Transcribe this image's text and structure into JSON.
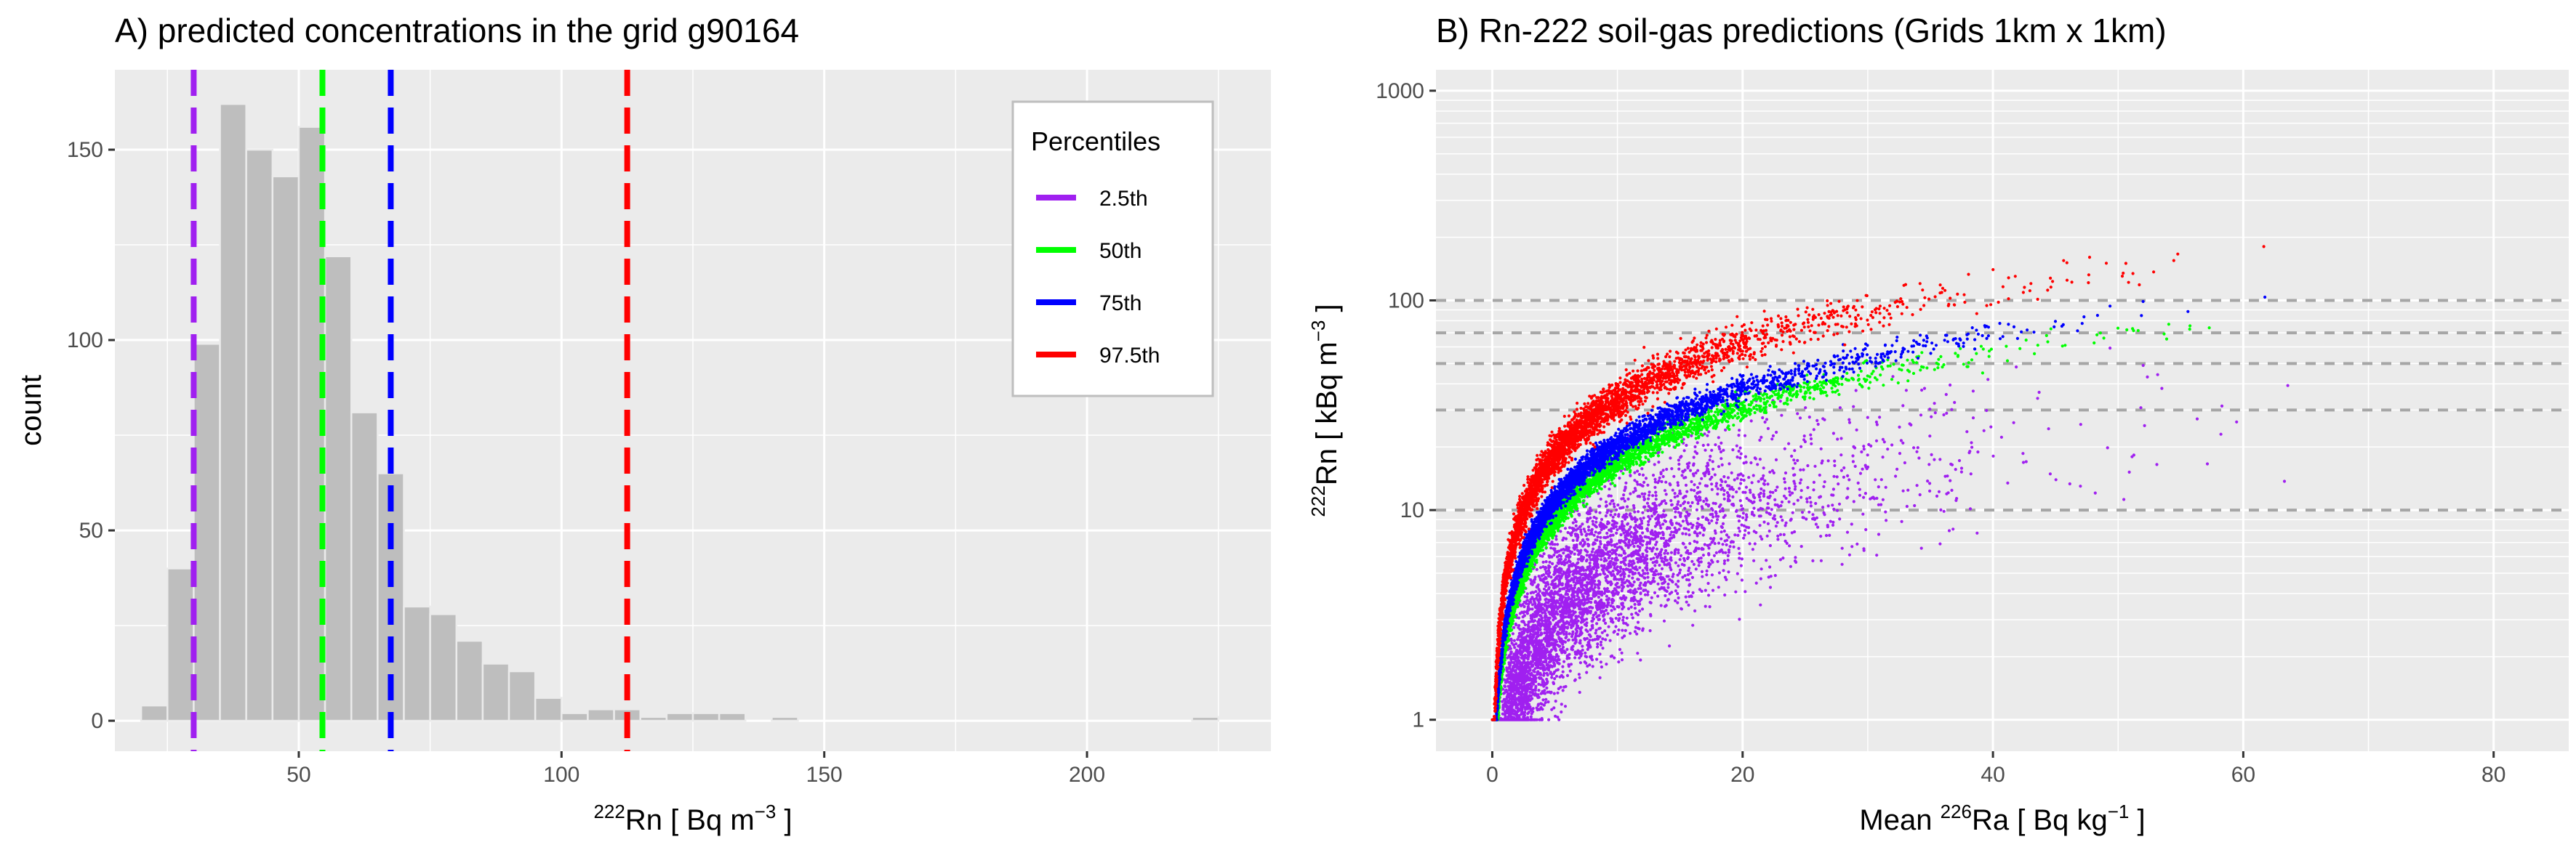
{
  "chart_data": [
    {
      "panel": "A",
      "type": "bar",
      "title": "A) predicted concentrations in the grid g90164",
      "xlabel": {
        "pre": "",
        "sup": "222",
        "main": "Rn [ Bq m",
        "sup2": "−3",
        "post": " ]"
      },
      "ylabel": "count",
      "xlim": [
        15,
        235
      ],
      "ylim": [
        -8,
        171
      ],
      "x_ticks": [
        50,
        100,
        150,
        200
      ],
      "y_ticks": [
        0,
        50,
        100,
        150
      ],
      "bin_width": 5,
      "bar_color": "#bebebe",
      "bins": [
        {
          "x": 22.5,
          "count": 4
        },
        {
          "x": 27.5,
          "count": 40
        },
        {
          "x": 32.5,
          "count": 99
        },
        {
          "x": 37.5,
          "count": 162
        },
        {
          "x": 42.5,
          "count": 150
        },
        {
          "x": 47.5,
          "count": 143
        },
        {
          "x": 52.5,
          "count": 156
        },
        {
          "x": 57.5,
          "count": 122
        },
        {
          "x": 62.5,
          "count": 81
        },
        {
          "x": 67.5,
          "count": 65
        },
        {
          "x": 72.5,
          "count": 30
        },
        {
          "x": 77.5,
          "count": 28
        },
        {
          "x": 82.5,
          "count": 21
        },
        {
          "x": 87.5,
          "count": 15
        },
        {
          "x": 92.5,
          "count": 13
        },
        {
          "x": 97.5,
          "count": 6
        },
        {
          "x": 102.5,
          "count": 2
        },
        {
          "x": 107.5,
          "count": 3
        },
        {
          "x": 112.5,
          "count": 3
        },
        {
          "x": 117.5,
          "count": 1
        },
        {
          "x": 122.5,
          "count": 2
        },
        {
          "x": 127.5,
          "count": 2
        },
        {
          "x": 132.5,
          "count": 2
        },
        {
          "x": 142.5,
          "count": 1
        },
        {
          "x": 222.5,
          "count": 1
        }
      ],
      "percentiles": [
        {
          "label": "2.5th",
          "value": 30,
          "color": "#a020f0"
        },
        {
          "label": "50th",
          "value": 54.5,
          "color": "#00ff00"
        },
        {
          "label": "75th",
          "value": 67.5,
          "color": "#0000ff"
        },
        {
          "label": "97.5th",
          "value": 112.5,
          "color": "#ff0000"
        }
      ],
      "legend": {
        "title": "Percentiles",
        "position": "top-right"
      }
    },
    {
      "panel": "B",
      "type": "scatter",
      "title": "B) Rn-222 soil-gas predictions (Grids 1km x 1km)",
      "xlabel": {
        "pre": "Mean ",
        "sup": "226",
        "main": "Ra [ Bq kg",
        "sup2": "−1",
        "post": " ]"
      },
      "ylabel": {
        "pre": "",
        "sup": "222",
        "main": "Rn [ kBq m",
        "sup2": "−3",
        "post": " ]"
      },
      "xlim": [
        -4.5,
        86
      ],
      "ylim_log10": [
        -0.15,
        3.1
      ],
      "y_scale": "log10",
      "x_ticks": [
        0,
        20,
        40,
        60,
        80
      ],
      "y_ticks": [
        1,
        10,
        100,
        1000
      ],
      "y_tick_labels": [
        "1",
        "10",
        "100",
        "1000"
      ],
      "reference_lines": [
        10,
        30,
        50,
        70,
        100
      ],
      "series": [
        {
          "percentile": "2.5th",
          "color": "#a020f0",
          "scale": 0.85,
          "x_max": 77
        },
        {
          "percentile": "50th",
          "color": "#00ff00",
          "scale": 2.2,
          "x_max": 77
        },
        {
          "percentile": "75th",
          "color": "#0000ff",
          "scale": 2.7,
          "x_max": 82
        },
        {
          "percentile": "97.5th",
          "color": "#ff0000",
          "scale": 4.2,
          "x_max": 82
        }
      ]
    }
  ]
}
